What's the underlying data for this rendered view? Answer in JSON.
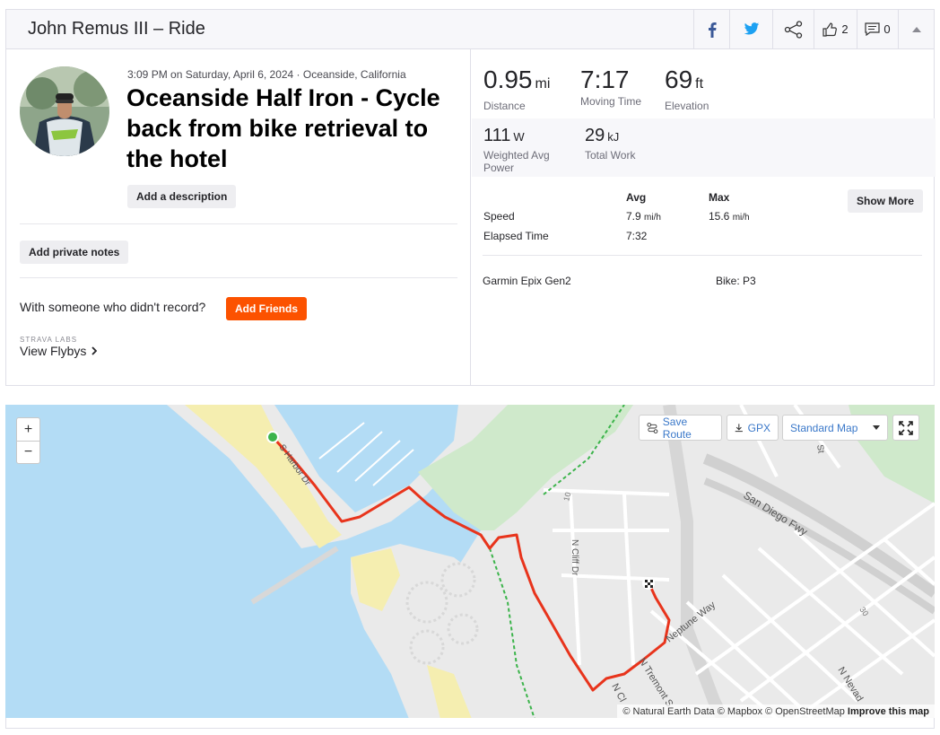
{
  "header": {
    "title": "John Remus III – Ride",
    "kudos_count": "2",
    "comment_count": "0"
  },
  "activity": {
    "meta": "3:09 PM on Saturday, April 6, 2024 · Oceanside, California",
    "title": "Oceanside Half Iron - Cycle back from bike retrieval to the hotel",
    "add_description": "Add a description",
    "add_private_notes": "Add private notes",
    "with_someone": "With someone who didn't record?",
    "add_friends": "Add Friends",
    "labs_label": "STRAVA LABS",
    "view_flybys": "View Flybys"
  },
  "stats": {
    "distance": {
      "value": "0.95",
      "unit": "mi",
      "label": "Distance"
    },
    "moving_time": {
      "value": "7:17",
      "label": "Moving Time"
    },
    "elevation": {
      "value": "69",
      "unit": "ft",
      "label": "Elevation"
    },
    "power": {
      "value": "111",
      "unit": "W",
      "label": "Weighted Avg Power"
    },
    "work": {
      "value": "29",
      "unit": "kJ",
      "label": "Total Work"
    }
  },
  "table": {
    "col_avg": "Avg",
    "col_max": "Max",
    "show_more": "Show More",
    "speed_label": "Speed",
    "speed_avg": "7.9",
    "speed_max": "15.6",
    "speed_unit": "mi/h",
    "elapsed_label": "Elapsed Time",
    "elapsed_avg": "7:32"
  },
  "device": {
    "device": "Garmin Epix Gen2",
    "bike": "Bike: P3"
  },
  "map": {
    "zoom_in": "+",
    "zoom_out": "−",
    "save_route": "Save Route",
    "gpx": "GPX",
    "map_type": "Standard Map",
    "labels": {
      "harbor": "S Harbor Dr",
      "cliff": "N Cliff Dr",
      "neptune": "Neptune Way",
      "tremont": "N Tremont S",
      "nevada": "N Nevad",
      "sandiego": "San Diego Fwy",
      "st": "St",
      "hwy": "10",
      "n_cl": "N Cl",
      "hwy2": "30"
    },
    "attribution": "© Natural Earth Data © Mapbox © OpenStreetMap",
    "improve": "Improve this map"
  },
  "colors": {
    "brand": "#fc5200",
    "route": "#e8341c",
    "water": "#b3dcf5",
    "sand": "#f5eeb0",
    "park": "#cfe9cb",
    "land": "#eaeaea"
  },
  "icons": [
    "facebook-icon",
    "twitter-icon",
    "share-icon",
    "kudos-icon",
    "comment-icon",
    "collapse-icon",
    "route-icon",
    "download-icon",
    "caret-down-icon",
    "fullscreen-icon",
    "chevron-right-icon"
  ]
}
